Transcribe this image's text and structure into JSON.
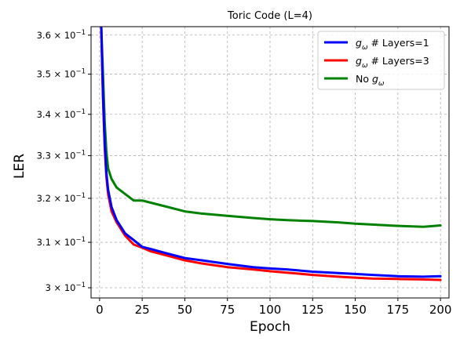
{
  "chart_data": {
    "type": "line",
    "title": "Toric Code (L=4)",
    "xlabel": "Epoch",
    "ylabel": "LER",
    "xlim": [
      -5,
      205
    ],
    "xticks": [
      0,
      25,
      50,
      75,
      100,
      125,
      150,
      175,
      200
    ],
    "yscale": "log",
    "ylim": [
      0.2978,
      0.3622
    ],
    "yticks": [
      {
        "value": 0.3,
        "mantissa": "3",
        "label": "3 × 10⁻¹"
      },
      {
        "value": 0.31,
        "mantissa": "3.1",
        "label": "3.1 × 10⁻¹"
      },
      {
        "value": 0.32,
        "mantissa": "3.2",
        "label": "3.2 × 10⁻¹"
      },
      {
        "value": 0.33,
        "mantissa": "3.3",
        "label": "3.3 × 10⁻¹"
      },
      {
        "value": 0.34,
        "mantissa": "3.4",
        "label": "3.4 × 10⁻¹"
      },
      {
        "value": 0.35,
        "mantissa": "3.5",
        "label": "3.5 × 10⁻¹"
      },
      {
        "value": 0.36,
        "mantissa": "3.6",
        "label": "3.6 × 10⁻¹"
      }
    ],
    "grid": true,
    "legend_position": "top-right",
    "series": [
      {
        "name": "g_ω # Layers=1",
        "color": "#0000ff",
        "x": [
          1,
          2,
          3,
          4,
          5,
          7,
          10,
          15,
          20,
          25,
          30,
          40,
          50,
          60,
          75,
          90,
          100,
          110,
          125,
          140,
          150,
          160,
          175,
          190,
          200
        ],
        "y": [
          0.362,
          0.345,
          0.333,
          0.326,
          0.322,
          0.318,
          0.315,
          0.312,
          0.3105,
          0.309,
          0.3085,
          0.3075,
          0.3065,
          0.306,
          0.3052,
          0.3045,
          0.3042,
          0.304,
          0.3035,
          0.3032,
          0.303,
          0.3028,
          0.3025,
          0.3024,
          0.3025
        ]
      },
      {
        "name": "g_ω # Layers=3",
        "color": "#ff0000",
        "x": [
          1,
          2,
          3,
          4,
          5,
          7,
          10,
          15,
          20,
          25,
          30,
          40,
          50,
          60,
          75,
          90,
          100,
          110,
          125,
          140,
          150,
          160,
          175,
          190,
          200
        ],
        "y": [
          0.362,
          0.344,
          0.332,
          0.325,
          0.321,
          0.317,
          0.3145,
          0.3115,
          0.3095,
          0.3088,
          0.308,
          0.307,
          0.306,
          0.3053,
          0.3045,
          0.304,
          0.3036,
          0.3033,
          0.3028,
          0.3024,
          0.3022,
          0.302,
          0.3019,
          0.3018,
          0.3017
        ]
      },
      {
        "name": "No g_ω",
        "color": "#008000",
        "x": [
          1,
          2,
          3,
          4,
          5,
          7,
          10,
          15,
          20,
          25,
          30,
          40,
          50,
          60,
          75,
          90,
          100,
          110,
          125,
          140,
          150,
          160,
          175,
          190,
          200
        ],
        "y": [
          0.362,
          0.35,
          0.338,
          0.331,
          0.327,
          0.3245,
          0.3225,
          0.321,
          0.3195,
          0.3195,
          0.319,
          0.318,
          0.317,
          0.3165,
          0.316,
          0.3155,
          0.3152,
          0.315,
          0.3148,
          0.3145,
          0.3142,
          0.314,
          0.3137,
          0.3135,
          0.3138
        ]
      }
    ]
  }
}
